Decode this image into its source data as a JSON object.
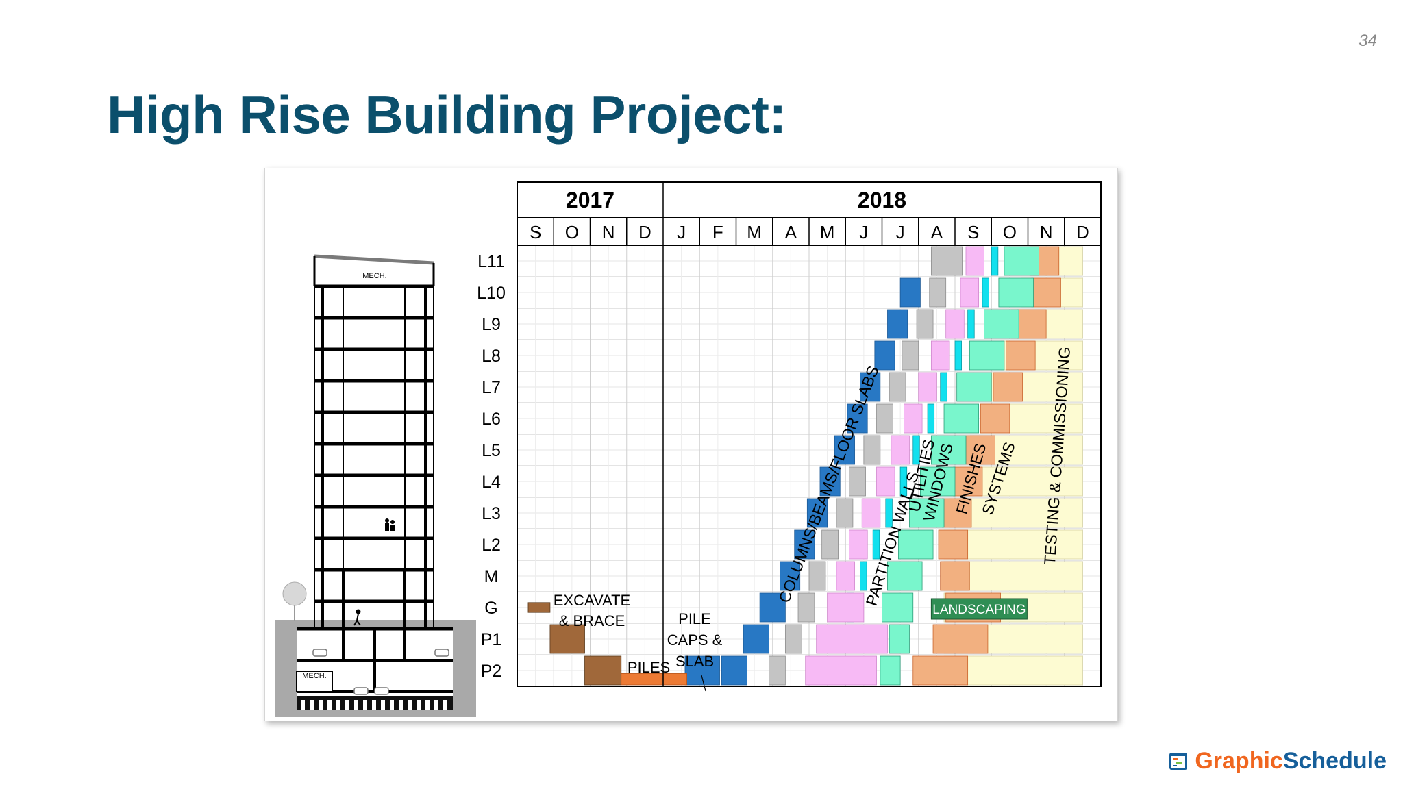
{
  "page_number": "34",
  "title": "High Rise Building Project:",
  "colors": {
    "title": "#0b4f6c",
    "columns": "#2878c4",
    "partition": "#c4c4c4",
    "utilities": "#f7baf5",
    "windows": "#12e0ee",
    "finishes": "#79f6cc",
    "systems": "#f2b080",
    "testing": "#fdfbd2",
    "excavate": "#a0683a",
    "piles": "#ec7a34",
    "landscaping": "#2f8e54",
    "brand_a": "#f0661f",
    "brand_b": "#165f9a"
  },
  "timeline": {
    "years": [
      "2017",
      "2018"
    ],
    "months": [
      "S",
      "O",
      "N",
      "D",
      "J",
      "F",
      "M",
      "A",
      "M",
      "J",
      "J",
      "A",
      "S",
      "O",
      "N",
      "D"
    ]
  },
  "levels": [
    "L11",
    "L10",
    "L9",
    "L8",
    "L7",
    "L6",
    "L5",
    "L4",
    "L3",
    "L2",
    "M",
    "G",
    "P1",
    "P2"
  ],
  "building_labels": {
    "mech_top": "MECH.",
    "mech_bottom": "MECH."
  },
  "activity_labels": {
    "excavate": "EXCAVATE\n& BRACE",
    "piles": "PILES",
    "pile_caps": "PILE\nCAPS &\nSLAB",
    "columns": "COLUMNS/BEAMS/FLOOR SLABS",
    "partition": "PARTITION WALLS",
    "utilities": "UTILITIES",
    "windows": "WINDOWS",
    "finishes": "FINISHES",
    "systems": "SYSTEMS",
    "testing": "TESTING & COMMISSIONING",
    "landscaping": "LANDSCAPING"
  },
  "brand": {
    "part_a": "Graphic",
    "part_b": "Schedule",
    "icon": "calendar-logo-icon"
  }
}
